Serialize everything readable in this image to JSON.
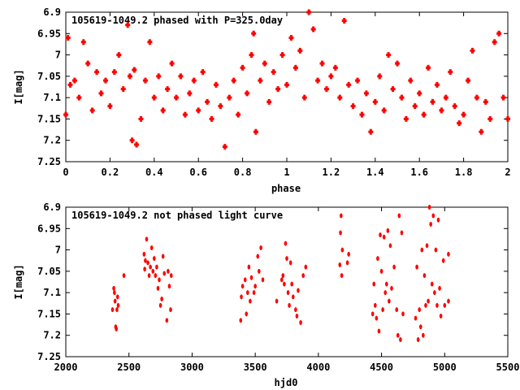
{
  "chart_data": [
    {
      "type": "scatter",
      "title": "105619-1049.2 phased with P=325.0day",
      "xlabel": "phase",
      "ylabel": "I[mag]",
      "xlim": [
        0,
        2
      ],
      "ylim": [
        7.25,
        6.9
      ],
      "y_inverted": true,
      "xticks": [
        "0",
        "0.2",
        "0.4",
        "0.6",
        "0.8",
        "1",
        "1.2",
        "1.4",
        "1.6",
        "1.8",
        "2"
      ],
      "yticks": [
        "6.9",
        "6.95",
        "7",
        "7.05",
        "7.1",
        "7.15",
        "7.2",
        "7.25"
      ],
      "marker_color": "#ff0000",
      "points": [
        [
          0.0,
          7.14
        ],
        [
          0.01,
          6.96
        ],
        [
          0.02,
          7.07
        ],
        [
          0.04,
          7.06
        ],
        [
          0.06,
          7.1
        ],
        [
          0.08,
          6.97
        ],
        [
          0.1,
          7.02
        ],
        [
          0.12,
          7.13
        ],
        [
          0.14,
          7.04
        ],
        [
          0.16,
          7.09
        ],
        [
          0.18,
          7.06
        ],
        [
          0.2,
          7.12
        ],
        [
          0.22,
          7.04
        ],
        [
          0.24,
          7.0
        ],
        [
          0.26,
          7.08
        ],
        [
          0.28,
          6.93
        ],
        [
          0.29,
          7.05
        ],
        [
          0.3,
          7.2
        ],
        [
          0.31,
          7.035
        ],
        [
          0.32,
          7.21
        ],
        [
          0.34,
          7.15
        ],
        [
          0.36,
          7.06
        ],
        [
          0.38,
          6.97
        ],
        [
          0.4,
          7.1
        ],
        [
          0.42,
          7.05
        ],
        [
          0.44,
          7.13
        ],
        [
          0.46,
          7.08
        ],
        [
          0.48,
          7.02
        ],
        [
          0.5,
          7.1
        ],
        [
          0.52,
          7.05
        ],
        [
          0.54,
          7.14
        ],
        [
          0.56,
          7.09
        ],
        [
          0.58,
          7.06
        ],
        [
          0.6,
          7.13
        ],
        [
          0.62,
          7.04
        ],
        [
          0.64,
          7.11
        ],
        [
          0.66,
          7.15
        ],
        [
          0.68,
          7.07
        ],
        [
          0.7,
          7.12
        ],
        [
          0.72,
          7.215
        ],
        [
          0.74,
          7.1
        ],
        [
          0.76,
          7.06
        ],
        [
          0.78,
          7.14
        ],
        [
          0.8,
          7.03
        ],
        [
          0.82,
          7.09
        ],
        [
          0.84,
          7.0
        ],
        [
          0.85,
          6.95
        ],
        [
          0.86,
          7.18
        ],
        [
          0.88,
          7.06
        ],
        [
          0.9,
          7.02
        ],
        [
          0.92,
          7.11
        ],
        [
          0.94,
          7.04
        ],
        [
          0.96,
          7.08
        ],
        [
          0.98,
          7.0
        ],
        [
          1.0,
          7.07
        ],
        [
          1.02,
          6.96
        ],
        [
          1.04,
          7.03
        ],
        [
          1.06,
          6.99
        ],
        [
          1.08,
          7.1
        ],
        [
          1.1,
          6.9
        ],
        [
          1.12,
          6.94
        ],
        [
          1.14,
          7.06
        ],
        [
          1.16,
          7.02
        ],
        [
          1.18,
          7.08
        ],
        [
          1.2,
          7.05
        ],
        [
          1.22,
          7.03
        ],
        [
          1.24,
          7.1
        ],
        [
          1.26,
          6.92
        ],
        [
          1.28,
          7.07
        ],
        [
          1.3,
          7.12
        ],
        [
          1.32,
          7.06
        ],
        [
          1.34,
          7.14
        ],
        [
          1.36,
          7.09
        ],
        [
          1.38,
          7.18
        ],
        [
          1.4,
          7.11
        ],
        [
          1.42,
          7.05
        ],
        [
          1.44,
          7.13
        ],
        [
          1.46,
          7.0
        ],
        [
          1.48,
          7.08
        ],
        [
          1.5,
          7.02
        ],
        [
          1.52,
          7.1
        ],
        [
          1.54,
          7.15
        ],
        [
          1.56,
          7.06
        ],
        [
          1.58,
          7.12
        ],
        [
          1.6,
          7.09
        ],
        [
          1.62,
          7.14
        ],
        [
          1.64,
          7.03
        ],
        [
          1.66,
          7.11
        ],
        [
          1.68,
          7.07
        ],
        [
          1.7,
          7.13
        ],
        [
          1.72,
          7.1
        ],
        [
          1.74,
          7.04
        ],
        [
          1.76,
          7.12
        ],
        [
          1.78,
          7.16
        ],
        [
          1.8,
          7.14
        ],
        [
          1.82,
          7.06
        ],
        [
          1.84,
          6.99
        ],
        [
          1.86,
          7.1
        ],
        [
          1.88,
          7.18
        ],
        [
          1.9,
          7.11
        ],
        [
          1.92,
          7.15
        ],
        [
          1.94,
          6.97
        ],
        [
          1.96,
          6.95
        ],
        [
          1.98,
          7.1
        ],
        [
          2.0,
          7.15
        ]
      ]
    },
    {
      "type": "scatter",
      "title": "105619-1049.2 not phased light curve",
      "xlabel": "hjd0",
      "ylabel": "I[mag]",
      "xlim": [
        2000,
        5500
      ],
      "ylim": [
        7.25,
        6.9
      ],
      "y_inverted": true,
      "xticks": [
        "2000",
        "2500",
        "3000",
        "3500",
        "4000",
        "4500",
        "5000",
        "5500"
      ],
      "yticks": [
        "6.9",
        "6.95",
        "7",
        "7.05",
        "7.1",
        "7.15",
        "7.2",
        "7.25"
      ],
      "marker_color": "#ff0000",
      "points": [
        [
          2370,
          7.14
        ],
        [
          2380,
          7.09
        ],
        [
          2385,
          7.1
        ],
        [
          2390,
          7.12
        ],
        [
          2395,
          7.18
        ],
        [
          2400,
          7.185
        ],
        [
          2405,
          7.14
        ],
        [
          2410,
          7.11
        ],
        [
          2415,
          7.13
        ],
        [
          2460,
          7.06
        ],
        [
          2620,
          7.01
        ],
        [
          2625,
          7.045
        ],
        [
          2630,
          7.025
        ],
        [
          2640,
          6.975
        ],
        [
          2650,
          7.03
        ],
        [
          2660,
          7.06
        ],
        [
          2670,
          7.04
        ],
        [
          2680,
          6.995
        ],
        [
          2690,
          7.05
        ],
        [
          2700,
          7.02
        ],
        [
          2710,
          7.06
        ],
        [
          2720,
          7.04
        ],
        [
          2730,
          7.09
        ],
        [
          2740,
          7.07
        ],
        [
          2750,
          7.13
        ],
        [
          2760,
          7.115
        ],
        [
          2770,
          7.015
        ],
        [
          2780,
          7.055
        ],
        [
          2800,
          7.165
        ],
        [
          2810,
          7.05
        ],
        [
          2820,
          7.085
        ],
        [
          2830,
          7.14
        ],
        [
          2835,
          7.06
        ],
        [
          3385,
          7.165
        ],
        [
          3390,
          7.11
        ],
        [
          3400,
          7.085
        ],
        [
          3420,
          7.07
        ],
        [
          3430,
          7.15
        ],
        [
          3440,
          7.1
        ],
        [
          3450,
          7.04
        ],
        [
          3460,
          7.12
        ],
        [
          3470,
          7.065
        ],
        [
          3490,
          7.1
        ],
        [
          3500,
          7.085
        ],
        [
          3520,
          7.015
        ],
        [
          3530,
          7.05
        ],
        [
          3545,
          6.995
        ],
        [
          3560,
          7.07
        ],
        [
          3670,
          7.12
        ],
        [
          3710,
          7.07
        ],
        [
          3720,
          7.06
        ],
        [
          3730,
          7.08
        ],
        [
          3740,
          6.985
        ],
        [
          3750,
          7.02
        ],
        [
          3760,
          7.1
        ],
        [
          3770,
          7.13
        ],
        [
          3780,
          7.03
        ],
        [
          3790,
          7.08
        ],
        [
          3800,
          7.11
        ],
        [
          3820,
          7.14
        ],
        [
          3830,
          7.155
        ],
        [
          3840,
          7.095
        ],
        [
          3860,
          7.17
        ],
        [
          3880,
          7.06
        ],
        [
          3900,
          7.04
        ],
        [
          4170,
          7.035
        ],
        [
          4175,
          6.96
        ],
        [
          4180,
          6.92
        ],
        [
          4185,
          7.06
        ],
        [
          4190,
          7.0
        ],
        [
          4230,
          7.03
        ],
        [
          4240,
          7.01
        ],
        [
          4430,
          7.15
        ],
        [
          4440,
          7.08
        ],
        [
          4450,
          7.13
        ],
        [
          4460,
          7.16
        ],
        [
          4470,
          7.02
        ],
        [
          4480,
          7.19
        ],
        [
          4490,
          6.965
        ],
        [
          4500,
          7.05
        ],
        [
          4510,
          7.14
        ],
        [
          4520,
          6.97
        ],
        [
          4530,
          7.1
        ],
        [
          4540,
          7.08
        ],
        [
          4550,
          6.955
        ],
        [
          4560,
          7.12
        ],
        [
          4570,
          6.99
        ],
        [
          4580,
          7.09
        ],
        [
          4600,
          7.04
        ],
        [
          4620,
          7.14
        ],
        [
          4630,
          7.2
        ],
        [
          4640,
          6.92
        ],
        [
          4650,
          7.21
        ],
        [
          4660,
          6.96
        ],
        [
          4670,
          7.15
        ],
        [
          4770,
          7.16
        ],
        [
          4780,
          7.04
        ],
        [
          4790,
          7.21
        ],
        [
          4800,
          7.14
        ],
        [
          4810,
          7.18
        ],
        [
          4820,
          7.0
        ],
        [
          4830,
          7.2
        ],
        [
          4840,
          7.06
        ],
        [
          4850,
          7.13
        ],
        [
          4860,
          6.99
        ],
        [
          4870,
          7.12
        ],
        [
          4880,
          6.9
        ],
        [
          4890,
          6.94
        ],
        [
          4900,
          7.08
        ],
        [
          4910,
          6.92
        ],
        [
          4920,
          7.1
        ],
        [
          4930,
          7.0
        ],
        [
          4940,
          7.13
        ],
        [
          4950,
          6.93
        ],
        [
          4960,
          7.09
        ],
        [
          4970,
          7.155
        ],
        [
          4990,
          7.025
        ],
        [
          5000,
          7.13
        ],
        [
          5030,
          7.01
        ],
        [
          5030,
          7.12
        ]
      ]
    }
  ]
}
